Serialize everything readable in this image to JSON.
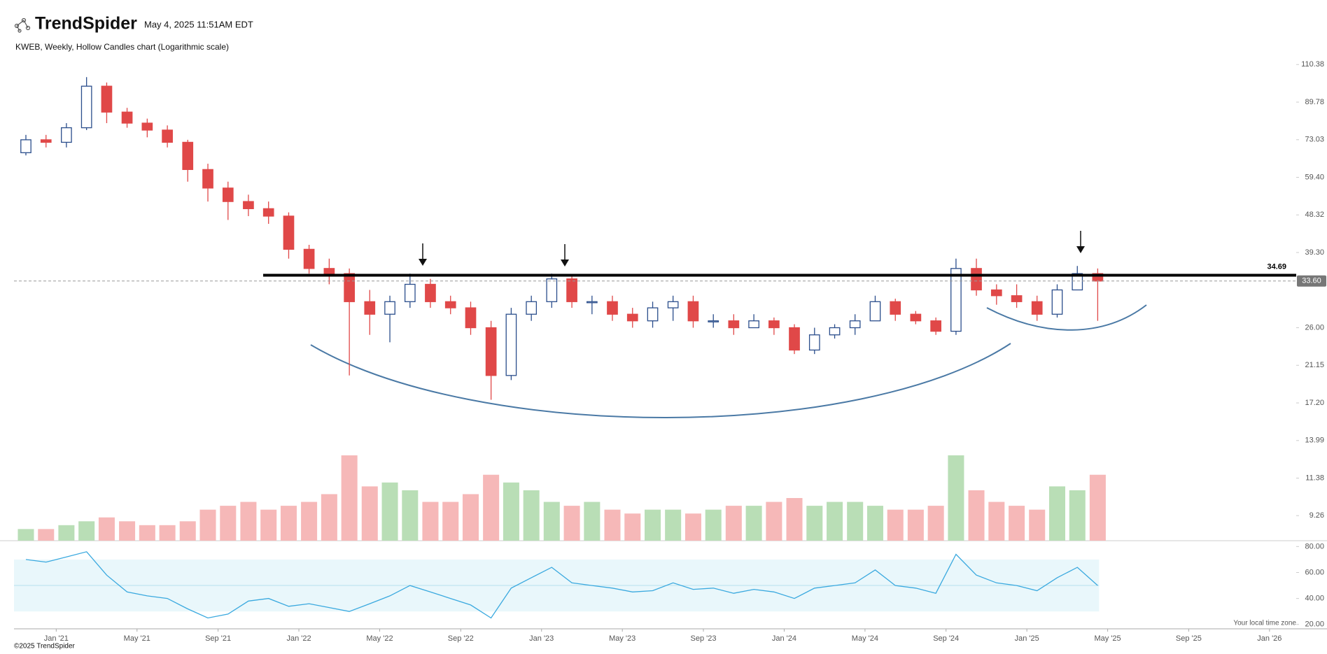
{
  "header": {
    "brand": "TrendSpider",
    "timestamp": "May 4, 2025 11:51AM EDT",
    "subtitle": "KWEB, Weekly, Hollow Candles chart (Logarithmic scale)"
  },
  "footer": {
    "copyright": "©2025 TrendSpider",
    "timezone_note": "Your local time zone"
  },
  "chart_data": {
    "type": "candlestick",
    "log_scale": true,
    "up_color": "#2b4e8c",
    "down_color": "#e04848",
    "volume_up_color": "#b9deb6",
    "volume_down_color": "#f6b8b8",
    "rsi_color": "#3aa9df",
    "x": [
      2020.875,
      2020.958,
      2021.042,
      2021.125,
      2021.208,
      2021.292,
      2021.375,
      2021.458,
      2021.542,
      2021.625,
      2021.708,
      2021.792,
      2021.875,
      2021.958,
      2022.042,
      2022.125,
      2022.208,
      2022.292,
      2022.375,
      2022.458,
      2022.542,
      2022.625,
      2022.708,
      2022.792,
      2022.875,
      2022.958,
      2023.042,
      2023.125,
      2023.208,
      2023.292,
      2023.375,
      2023.458,
      2023.542,
      2023.625,
      2023.708,
      2023.792,
      2023.875,
      2023.958,
      2024.042,
      2024.125,
      2024.208,
      2024.292,
      2024.375,
      2024.458,
      2024.542,
      2024.625,
      2024.708,
      2024.792,
      2024.875,
      2024.958,
      2025.042,
      2025.125,
      2025.208,
      2025.292
    ],
    "open": [
      68,
      73,
      72,
      78,
      98,
      85,
      80,
      77,
      72,
      62,
      56,
      52,
      50,
      48,
      40,
      36,
      35,
      30,
      28,
      30,
      33,
      30,
      29,
      26,
      20,
      28,
      30,
      34,
      30,
      30,
      28,
      27,
      29,
      30,
      27,
      27,
      26,
      27,
      26,
      23,
      25,
      26,
      27,
      30,
      28,
      27,
      25.5,
      36,
      32,
      31,
      30,
      28,
      32,
      35
    ],
    "high": [
      75,
      75,
      80,
      103,
      100,
      87,
      82,
      79,
      73,
      64,
      58,
      54,
      52,
      49,
      41,
      38,
      36,
      32,
      31,
      35,
      34,
      31,
      30,
      27,
      29,
      31,
      35,
      34.5,
      31,
      31,
      29,
      30,
      31,
      31,
      28,
      28,
      28,
      27.5,
      26.5,
      26,
      26.5,
      28,
      31,
      30.5,
      28.5,
      27.5,
      38,
      38,
      33,
      33,
      31,
      33,
      36.5,
      36
    ],
    "low": [
      67,
      70,
      70,
      77,
      80,
      78,
      74,
      70,
      58,
      52,
      47,
      48,
      46,
      38,
      35,
      33,
      20,
      25,
      24,
      29,
      29,
      28,
      25,
      17.5,
      19.5,
      27,
      29,
      29,
      28,
      27,
      26,
      26,
      27,
      26,
      26,
      25,
      26,
      25,
      22.5,
      22.5,
      24.5,
      25,
      27,
      27,
      26.5,
      25,
      25,
      31,
      29.5,
      29,
      27,
      27.5,
      32,
      27
    ],
    "close": [
      73,
      72,
      78,
      98,
      85,
      80,
      77,
      72,
      62,
      56,
      52,
      50,
      48,
      40,
      36,
      35,
      30,
      28,
      30,
      33,
      30,
      29,
      26,
      20,
      28,
      30,
      34,
      30,
      30,
      28,
      27,
      29,
      30,
      27,
      27,
      26,
      27,
      26,
      23,
      25,
      26,
      27,
      30,
      28,
      27,
      25.5,
      36,
      32,
      31,
      30,
      28,
      32,
      35,
      33.6
    ],
    "volume": [
      3,
      3,
      4,
      5,
      6,
      5,
      4,
      4,
      5,
      8,
      9,
      10,
      8,
      9,
      10,
      12,
      22,
      14,
      15,
      13,
      10,
      10,
      12,
      17,
      15,
      13,
      10,
      9,
      10,
      8,
      7,
      8,
      8,
      7,
      8,
      9,
      9,
      10,
      11,
      9,
      10,
      10,
      9,
      8,
      8,
      9,
      22,
      13,
      10,
      9,
      8,
      14,
      13,
      17
    ],
    "rsi": [
      70,
      68,
      72,
      76,
      58,
      45,
      42,
      40,
      32,
      25,
      28,
      38,
      40,
      34,
      36,
      33,
      30,
      36,
      42,
      50,
      45,
      40,
      35,
      25,
      48,
      56,
      64,
      52,
      50,
      48,
      45,
      46,
      52,
      47,
      48,
      44,
      47,
      45,
      40,
      48,
      50,
      52,
      62,
      50,
      48,
      44,
      74,
      58,
      52,
      50,
      46,
      56,
      64,
      50
    ],
    "xlim": [
      2020.826,
      2026.11
    ],
    "xticks": [
      {
        "value": 2021,
        "label": "Jan '21"
      },
      {
        "value": 2021.333,
        "label": "May '21"
      },
      {
        "value": 2021.667,
        "label": "Sep '21"
      },
      {
        "value": 2022,
        "label": "Jan '22"
      },
      {
        "value": 2022.333,
        "label": "May '22"
      },
      {
        "value": 2022.667,
        "label": "Sep '22"
      },
      {
        "value": 2023,
        "label": "Jan '23"
      },
      {
        "value": 2023.333,
        "label": "May '23"
      },
      {
        "value": 2023.667,
        "label": "Sep '23"
      },
      {
        "value": 2024,
        "label": "Jan '24"
      },
      {
        "value": 2024.333,
        "label": "May '24"
      },
      {
        "value": 2024.667,
        "label": "Sep '24"
      },
      {
        "value": 2025,
        "label": "Jan '25"
      },
      {
        "value": 2025.333,
        "label": "May '25"
      },
      {
        "value": 2025.667,
        "label": "Sep '25"
      },
      {
        "value": 2026,
        "label": "Jan '26"
      }
    ],
    "ylim": [
      8.07,
      115.7
    ],
    "yticks": [
      110.38,
      89.78,
      73.03,
      {
        "value": 59.4,
        "label": "59.40"
      },
      48.32,
      {
        "value": 39.3,
        "label": "39.30"
      },
      {
        "value": 26,
        "label": "26.00"
      },
      21.15,
      {
        "value": 17.2,
        "label": "17.20"
      },
      13.99,
      11.38,
      9.26
    ],
    "rsi_ylim": [
      16.1,
      84.5
    ],
    "rsi_yticks": [
      {
        "value": 80,
        "label": "80.00"
      },
      {
        "value": 60,
        "label": "60.00"
      },
      {
        "value": 40,
        "label": "40.00"
      },
      {
        "value": 20,
        "label": "20.00"
      }
    ],
    "rsi_band": [
      30,
      70
    ],
    "rsi_mid": 50,
    "level": 34.69,
    "last_price": {
      "value": 33.6,
      "label": "33.60"
    }
  }
}
